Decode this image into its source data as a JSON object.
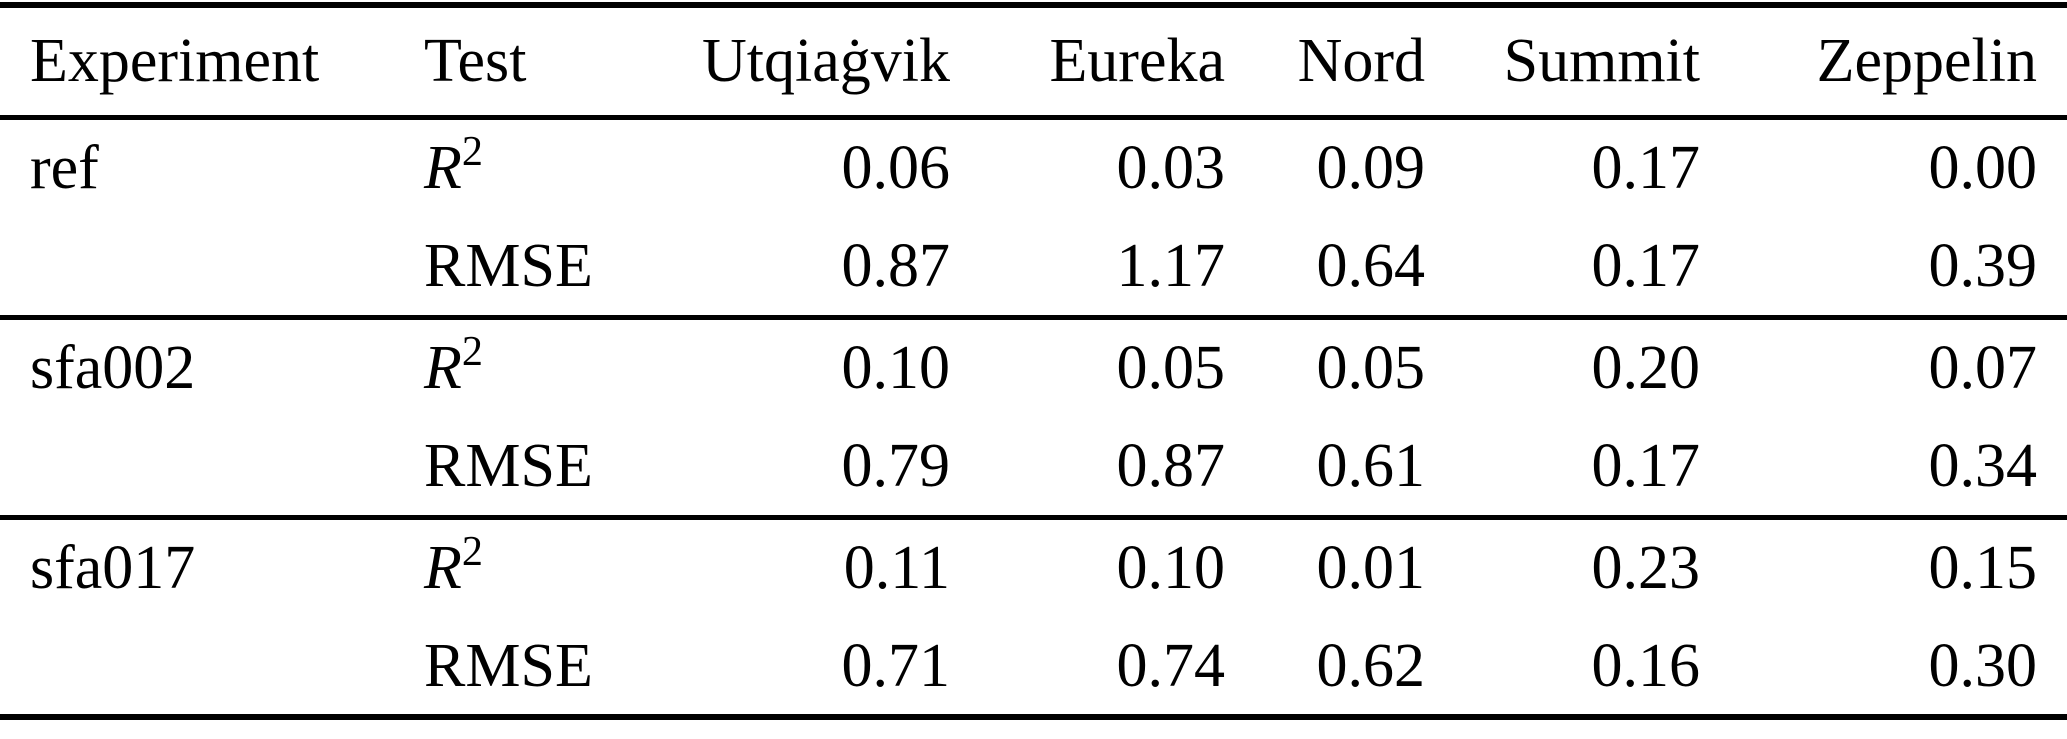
{
  "table": {
    "columns": [
      "Experiment",
      "Test",
      "Utqiaġvik",
      "Eureka",
      "Nord",
      "Summit",
      "Zeppelin"
    ],
    "blocks": [
      {
        "experiment": "ref",
        "rows": [
          {
            "test_italic": "R",
            "test_roman": "",
            "test_sup": "2",
            "values": [
              "0.06",
              "0.03",
              "0.09",
              "0.17",
              "0.00"
            ]
          },
          {
            "test_italic": "",
            "test_roman": "RMSE",
            "test_sup": "",
            "values": [
              "0.87",
              "1.17",
              "0.64",
              "0.17",
              "0.39"
            ]
          }
        ]
      },
      {
        "experiment": "sfa002",
        "rows": [
          {
            "test_italic": "R",
            "test_roman": "",
            "test_sup": "2",
            "values": [
              "0.10",
              "0.05",
              "0.05",
              "0.20",
              "0.07"
            ]
          },
          {
            "test_italic": "",
            "test_roman": "RMSE",
            "test_sup": "",
            "values": [
              "0.79",
              "0.87",
              "0.61",
              "0.17",
              "0.34"
            ]
          }
        ]
      },
      {
        "experiment": "sfa017",
        "rows": [
          {
            "test_italic": "R",
            "test_roman": "",
            "test_sup": "2",
            "values": [
              "0.11",
              "0.10",
              "0.01",
              "0.23",
              "0.15"
            ]
          },
          {
            "test_italic": "",
            "test_roman": "RMSE",
            "test_sup": "",
            "values": [
              "0.71",
              "0.74",
              "0.62",
              "0.16",
              "0.30"
            ]
          }
        ]
      }
    ]
  },
  "chart_data": {
    "type": "table",
    "title": "",
    "columns": [
      "Experiment",
      "Test",
      "Utqiaġvik",
      "Eureka",
      "Nord",
      "Summit",
      "Zeppelin"
    ],
    "rows": [
      [
        "ref",
        "R^2",
        0.06,
        0.03,
        0.09,
        0.17,
        0.0
      ],
      [
        "ref",
        "RMSE",
        0.87,
        1.17,
        0.64,
        0.17,
        0.39
      ],
      [
        "sfa002",
        "R^2",
        0.1,
        0.05,
        0.05,
        0.2,
        0.07
      ],
      [
        "sfa002",
        "RMSE",
        0.79,
        0.87,
        0.61,
        0.17,
        0.34
      ],
      [
        "sfa017",
        "R^2",
        0.11,
        0.1,
        0.01,
        0.23,
        0.15
      ],
      [
        "sfa017",
        "RMSE",
        0.71,
        0.74,
        0.62,
        0.16,
        0.3
      ]
    ]
  }
}
